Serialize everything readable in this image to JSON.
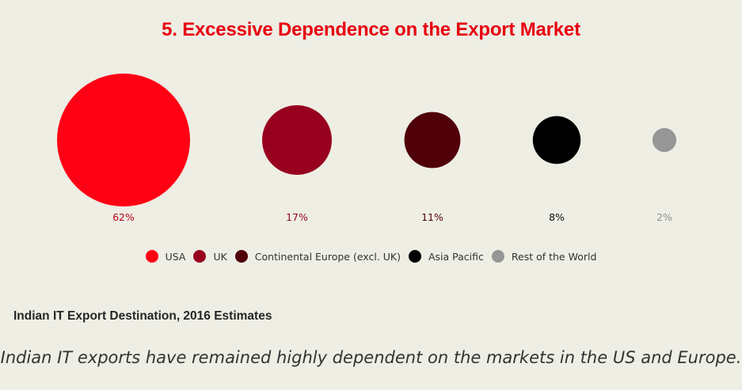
{
  "chart_data": {
    "type": "bubble",
    "title": "5. Excessive Dependence on the Export Market",
    "subtitle": "Indian IT Export Destination, 2016 Estimates",
    "categories": [
      "USA",
      "UK",
      "Continental Europe (excl. UK)",
      "Asia Pacific",
      "Rest of the World"
    ],
    "values": [
      62,
      17,
      11,
      8,
      2
    ],
    "labels": [
      "62%",
      "17%",
      "11%",
      "8%",
      "2%"
    ],
    "colors": [
      "#ff0015",
      "#98001f",
      "#500009",
      "#000000",
      "#969696"
    ],
    "label_colors": [
      "#c0001a",
      "#98001f",
      "#500009",
      "#111111",
      "#8e8e8e"
    ],
    "legend_position": "bottom-center"
  },
  "caption": "Indian IT exports have remained highly dependent on the markets in the US and Europe."
}
